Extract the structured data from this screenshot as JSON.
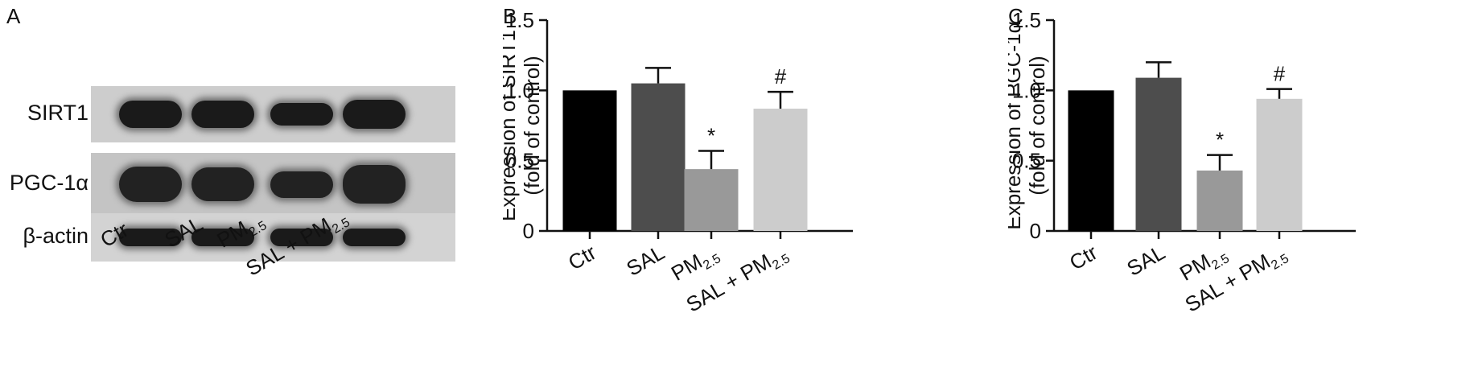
{
  "panels": {
    "a": {
      "letter": "A",
      "rows": [
        {
          "label": "SIRT1",
          "strip_color": "#cdcdcd",
          "band_color": "#1a1a1a",
          "intensity": [
            1.0,
            1.0,
            0.8,
            1.05
          ]
        },
        {
          "label": "PGC-1α",
          "strip_color": "#c4c4c4",
          "band_color": "#222222",
          "intensity": [
            1.0,
            0.95,
            0.75,
            1.1
          ]
        },
        {
          "label": "β-actin",
          "strip_color": "#d3d3d3",
          "band_color": "#1a1a1a",
          "intensity": [
            1.0,
            1.0,
            1.0,
            1.0
          ]
        }
      ],
      "lanes": [
        {
          "main": "Ctr",
          "sub": "",
          "tail": ""
        },
        {
          "main": "SAL",
          "sub": "",
          "tail": ""
        },
        {
          "main": "PM",
          "sub": "2.5",
          "tail": ""
        },
        {
          "main": "SAL + PM",
          "sub": "2.5",
          "tail": ""
        }
      ]
    },
    "b": {
      "letter": "B"
    },
    "c": {
      "letter": "C"
    }
  },
  "chart_data": [
    {
      "type": "bar",
      "title": "",
      "ylabel_line1": "Expression of SIRT1",
      "ylabel_line2": "(fold of control)",
      "xlabel": "",
      "ylim": [
        0,
        1.5
      ],
      "yticks": [
        "0",
        "0.5",
        "1.0",
        "1.5"
      ],
      "categories": [
        {
          "main": "Ctr",
          "sub": "",
          "tail": ""
        },
        {
          "main": "SAL",
          "sub": "",
          "tail": ""
        },
        {
          "main": "PM",
          "sub": "2.5",
          "tail": ""
        },
        {
          "main": "SAL + PM",
          "sub": "2.5",
          "tail": ""
        }
      ],
      "values": [
        1.0,
        1.05,
        0.44,
        0.87
      ],
      "errors": [
        0,
        0.11,
        0.13,
        0.12
      ],
      "annotations": [
        "",
        "",
        "*",
        "#"
      ],
      "bar_colors": [
        "#000000",
        "#4d4d4d",
        "#999999",
        "#cccccc"
      ]
    },
    {
      "type": "bar",
      "title": "",
      "ylabel_line1": "Expression of PGC-1α",
      "ylabel_line2": "(fold of control)",
      "xlabel": "",
      "ylim": [
        0,
        1.5
      ],
      "yticks": [
        "0",
        "0.5",
        "1.0",
        "1.5"
      ],
      "categories": [
        {
          "main": "Ctr",
          "sub": "",
          "tail": ""
        },
        {
          "main": "SAL",
          "sub": "",
          "tail": ""
        },
        {
          "main": "PM",
          "sub": "2.5",
          "tail": ""
        },
        {
          "main": "SAL + PM",
          "sub": "2.5",
          "tail": ""
        }
      ],
      "values": [
        1.0,
        1.09,
        0.43,
        0.94
      ],
      "errors": [
        0,
        0.11,
        0.11,
        0.07
      ],
      "annotations": [
        "",
        "",
        "*",
        "#"
      ],
      "bar_colors": [
        "#000000",
        "#4d4d4d",
        "#999999",
        "#cccccc"
      ]
    }
  ]
}
